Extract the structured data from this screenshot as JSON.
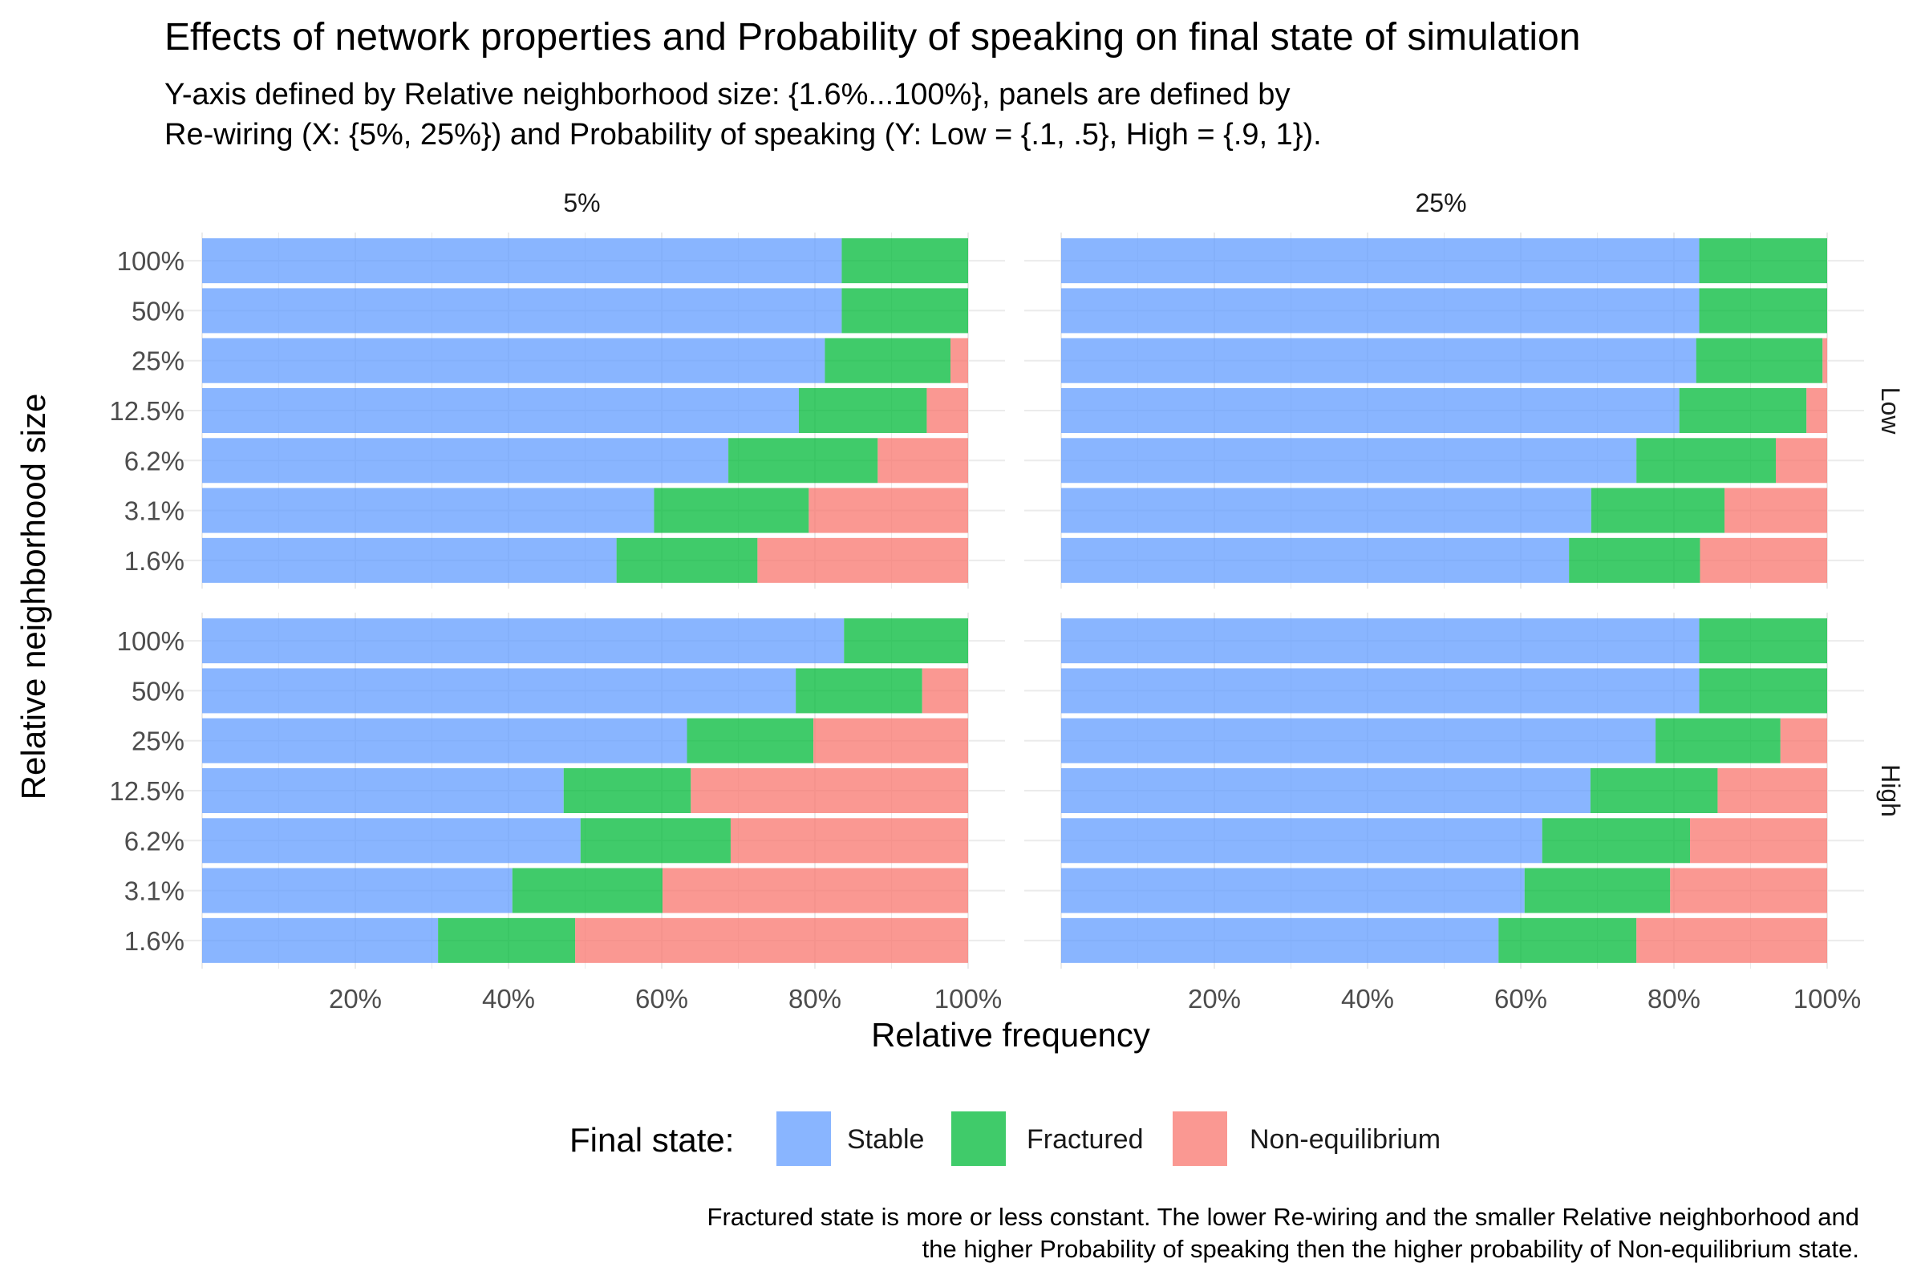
{
  "colors": {
    "stable": "#619CFF",
    "fractured": "#00BA38",
    "non_equilibrium": "#F8766D",
    "grid": "#ebebeb"
  },
  "chart_data": {
    "type": "bar",
    "orientation": "horizontal",
    "stacked": true,
    "title": "Effects of network properties and Probability of speaking on final state of simulation",
    "subtitle_lines": [
      "Y-axis defined by Relative neighborhood size: {1.6%...100%}, panels are defined by",
      "Re-wiring (X: {5%, 25%}) and  Probability of speaking (Y: Low = {.1, .5}, High = {.9, 1})."
    ],
    "caption_lines": [
      "Fractured state is more or less constant. The lower Re-wiring and the smaller Relative neighborhood and",
      "the higher Probability of speaking then the higher probability of Non-equilibrium state."
    ],
    "xlabel": "Relative frequency",
    "ylabel": "Relative neighborhood size",
    "xlim": [
      0,
      100
    ],
    "x_ticks": [
      "20%",
      "40%",
      "60%",
      "80%",
      "100%"
    ],
    "x_tick_values": [
      20,
      40,
      60,
      80,
      100
    ],
    "grid": true,
    "legend": {
      "title": "Final state:",
      "position": "bottom",
      "entries": [
        "Stable",
        "Fractured",
        "Non-equilibrium"
      ]
    },
    "categories": [
      "100%",
      "50%",
      "25%",
      "12.5%",
      "6.2%",
      "3.1%",
      "1.6%"
    ],
    "facet_columns": [
      "5%",
      "25%"
    ],
    "facet_rows": [
      "Low",
      "High"
    ],
    "panels": [
      {
        "column": "5%",
        "row": "Low",
        "series": [
          {
            "name": "Stable",
            "values": [
              83.5,
              83.5,
              81.3,
              77.9,
              68.7,
              59.0,
              54.1
            ]
          },
          {
            "name": "Fractured",
            "values": [
              16.5,
              16.5,
              16.4,
              16.7,
              19.5,
              20.2,
              18.4
            ]
          },
          {
            "name": "Non-equilibrium",
            "values": [
              0,
              0,
              2.3,
              5.4,
              11.8,
              20.8,
              27.5
            ]
          }
        ]
      },
      {
        "column": "25%",
        "row": "Low",
        "series": [
          {
            "name": "Stable",
            "values": [
              83.3,
              83.3,
              82.9,
              80.7,
              75.1,
              69.2,
              66.3
            ]
          },
          {
            "name": "Fractured",
            "values": [
              16.7,
              16.7,
              16.5,
              16.6,
              18.2,
              17.4,
              17.1
            ]
          },
          {
            "name": "Non-equilibrium",
            "values": [
              0,
              0,
              0.6,
              2.7,
              6.7,
              13.4,
              16.6
            ]
          }
        ]
      },
      {
        "column": "5%",
        "row": "High",
        "series": [
          {
            "name": "Stable",
            "values": [
              83.8,
              77.5,
              63.3,
              47.2,
              49.4,
              40.5,
              30.8
            ]
          },
          {
            "name": "Fractured",
            "values": [
              16.2,
              16.5,
              16.5,
              16.6,
              19.6,
              19.6,
              17.9
            ]
          },
          {
            "name": "Non-equilibrium",
            "values": [
              0,
              6.0,
              20.2,
              36.2,
              31.0,
              39.9,
              51.3
            ]
          }
        ]
      },
      {
        "column": "25%",
        "row": "High",
        "series": [
          {
            "name": "Stable",
            "values": [
              83.3,
              83.3,
              77.6,
              69.1,
              62.8,
              60.5,
              57.1
            ]
          },
          {
            "name": "Fractured",
            "values": [
              16.7,
              16.7,
              16.3,
              16.6,
              19.3,
              19.0,
              18.0
            ]
          },
          {
            "name": "Non-equilibrium",
            "values": [
              0,
              0,
              6.1,
              14.3,
              17.9,
              20.5,
              24.9
            ]
          }
        ]
      }
    ]
  }
}
